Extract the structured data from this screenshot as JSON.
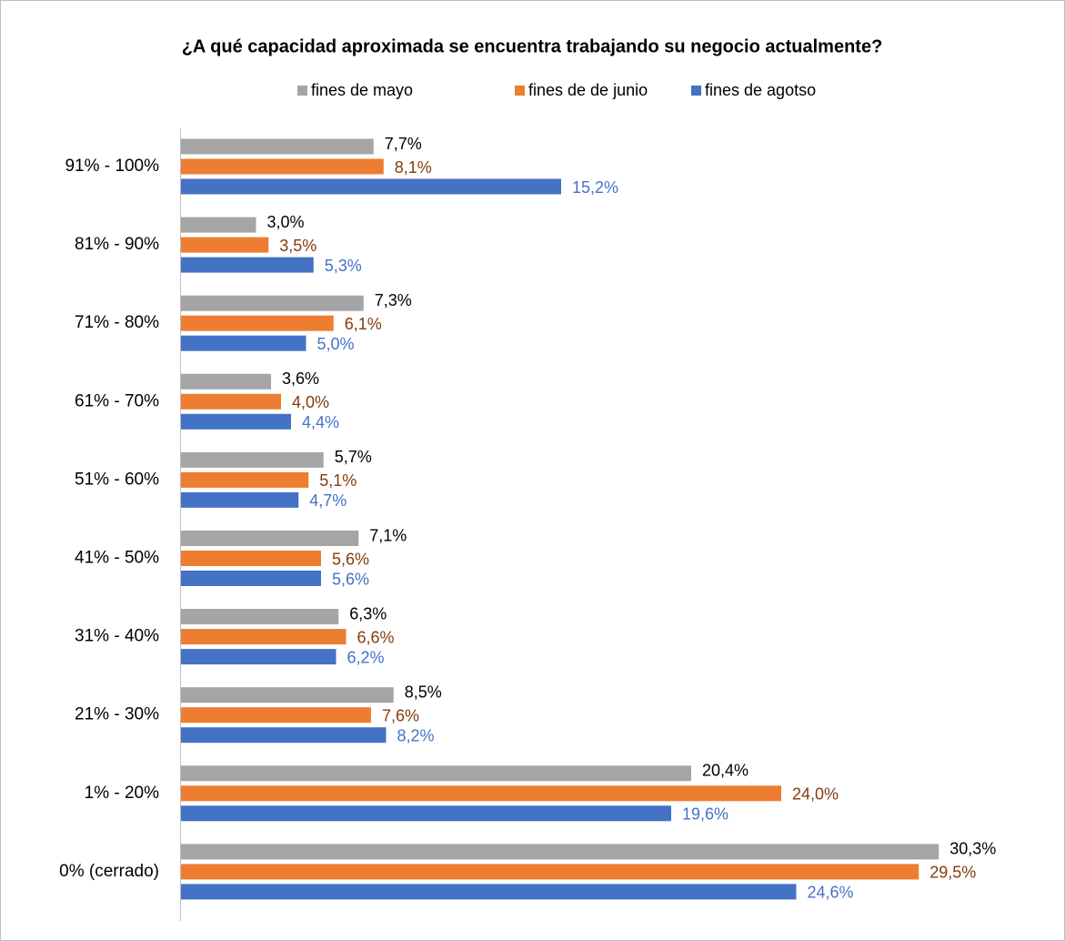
{
  "chart_data": {
    "type": "bar",
    "orientation": "horizontal",
    "title": "¿A qué capacidad aproximada se encuentra trabajando su negocio actualmente?",
    "categories": [
      "91% - 100%",
      "81% - 90%",
      "71% - 80%",
      "61% - 70%",
      "51% - 60%",
      "41% - 50%",
      "31% - 40%",
      "21% - 30%",
      "1% - 20%",
      "0% (cerrado)"
    ],
    "series": [
      {
        "name": "fines de mayo",
        "color": "#a5a5a5",
        "label_color": "#000000",
        "values": [
          7.7,
          3.0,
          7.3,
          3.6,
          5.7,
          7.1,
          6.3,
          8.5,
          20.4,
          30.3
        ],
        "value_labels": [
          "7,7%",
          "3,0%",
          "7,3%",
          "3,6%",
          "5,7%",
          "7,1%",
          "6,3%",
          "8,5%",
          "20,4%",
          "30,3%"
        ]
      },
      {
        "name": "fines de de junio",
        "color": "#ed7d31",
        "label_color": "#843c0c",
        "values": [
          8.1,
          3.5,
          6.1,
          4.0,
          5.1,
          5.6,
          6.6,
          7.6,
          24.0,
          29.5
        ],
        "value_labels": [
          "8,1%",
          "3,5%",
          "6,1%",
          "4,0%",
          "5,1%",
          "5,6%",
          "6,6%",
          "7,6%",
          "24,0%",
          "29,5%"
        ]
      },
      {
        "name": "fines de agotso",
        "color": "#4472c4",
        "label_color": "#4472c4",
        "values": [
          15.2,
          5.3,
          5.0,
          4.4,
          4.7,
          5.6,
          6.2,
          8.2,
          19.6,
          24.6
        ],
        "value_labels": [
          "15,2%",
          "5,3%",
          "5,0%",
          "4,4%",
          "4,7%",
          "5,6%",
          "6,2%",
          "8,2%",
          "19,6%",
          "24,6%"
        ]
      }
    ],
    "legend": "top"
  }
}
